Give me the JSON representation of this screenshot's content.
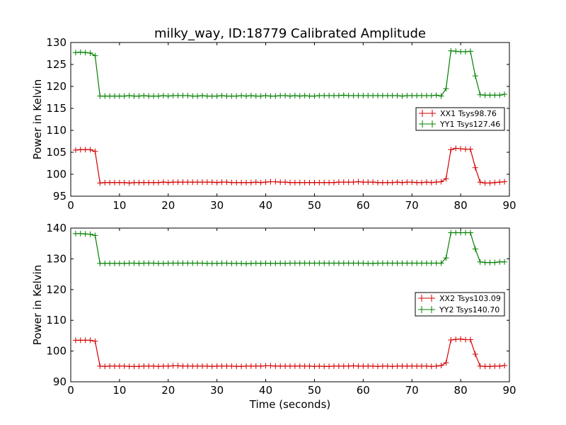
{
  "chart_data": [
    {
      "type": "line",
      "title": "milky_way, ID:18779 Calibrated Amplitude",
      "xlabel": "",
      "ylabel": "Power in Kelvin",
      "xlim": [
        0,
        90
      ],
      "ylim": [
        95,
        130
      ],
      "xticks": [
        "0",
        "10",
        "20",
        "30",
        "40",
        "50",
        "60",
        "70",
        "80",
        "90"
      ],
      "yticks": [
        "95",
        "100",
        "105",
        "110",
        "115",
        "120",
        "125",
        "130"
      ],
      "grid": false,
      "legend": "right",
      "x": [
        1,
        2,
        3,
        4,
        5,
        6,
        7,
        8,
        9,
        10,
        11,
        12,
        13,
        14,
        15,
        16,
        17,
        18,
        19,
        20,
        21,
        22,
        23,
        24,
        25,
        26,
        27,
        28,
        29,
        30,
        31,
        32,
        33,
        34,
        35,
        36,
        37,
        38,
        39,
        40,
        41,
        42,
        43,
        44,
        45,
        46,
        47,
        48,
        49,
        50,
        51,
        52,
        53,
        54,
        55,
        56,
        57,
        58,
        59,
        60,
        61,
        62,
        63,
        64,
        65,
        66,
        67,
        68,
        69,
        70,
        71,
        72,
        73,
        74,
        75,
        76,
        77,
        78,
        79,
        80,
        81,
        82,
        83,
        84,
        85,
        86,
        87,
        88,
        89
      ],
      "series": [
        {
          "name": "XX1 Tsys98.76",
          "color": "#d40000",
          "values": [
            105.5,
            105.6,
            105.6,
            105.6,
            105.2,
            98.0,
            98.1,
            98.1,
            98.1,
            98.1,
            98.1,
            98.0,
            98.1,
            98.1,
            98.1,
            98.1,
            98.1,
            98.1,
            98.2,
            98.1,
            98.2,
            98.2,
            98.2,
            98.2,
            98.2,
            98.2,
            98.2,
            98.2,
            98.2,
            98.1,
            98.2,
            98.2,
            98.1,
            98.1,
            98.1,
            98.1,
            98.1,
            98.2,
            98.1,
            98.2,
            98.3,
            98.3,
            98.2,
            98.2,
            98.1,
            98.1,
            98.1,
            98.1,
            98.1,
            98.1,
            98.1,
            98.1,
            98.1,
            98.1,
            98.2,
            98.2,
            98.2,
            98.2,
            98.3,
            98.2,
            98.2,
            98.2,
            98.1,
            98.1,
            98.1,
            98.1,
            98.2,
            98.1,
            98.2,
            98.2,
            98.1,
            98.1,
            98.2,
            98.1,
            98.2,
            98.3,
            99.0,
            105.6,
            105.9,
            105.8,
            105.7,
            105.7,
            101.5,
            98.2,
            98.0,
            98.0,
            98.1,
            98.2,
            98.3
          ]
        },
        {
          "name": "YY1 Tsys127.46",
          "color": "#008000",
          "values": [
            127.7,
            127.8,
            127.7,
            127.6,
            127.0,
            117.8,
            117.8,
            117.8,
            117.8,
            117.8,
            117.8,
            117.9,
            117.8,
            117.8,
            117.9,
            117.8,
            117.8,
            117.8,
            117.9,
            117.8,
            117.9,
            117.9,
            117.9,
            117.9,
            117.8,
            117.8,
            117.9,
            117.8,
            117.8,
            117.8,
            117.9,
            117.8,
            117.8,
            117.8,
            117.9,
            117.8,
            117.9,
            117.8,
            117.8,
            117.9,
            117.8,
            117.8,
            117.9,
            117.9,
            117.8,
            117.9,
            117.8,
            117.9,
            117.8,
            117.8,
            117.9,
            117.9,
            117.9,
            117.9,
            117.9,
            118.0,
            117.9,
            117.9,
            117.9,
            117.9,
            117.9,
            117.9,
            117.9,
            117.9,
            117.9,
            117.9,
            117.9,
            117.8,
            117.9,
            117.9,
            117.9,
            117.9,
            117.9,
            117.9,
            118.0,
            117.8,
            119.5,
            128.1,
            128.0,
            127.9,
            127.9,
            128.0,
            122.4,
            118.1,
            118.0,
            118.0,
            118.0,
            118.0,
            118.2
          ]
        }
      ]
    },
    {
      "type": "line",
      "title": "",
      "xlabel": "Time (seconds)",
      "ylabel": "Power in Kelvin",
      "xlim": [
        0,
        90
      ],
      "ylim": [
        90,
        140
      ],
      "xticks": [
        "0",
        "10",
        "20",
        "30",
        "40",
        "50",
        "60",
        "70",
        "80",
        "90"
      ],
      "yticks": [
        "90",
        "100",
        "110",
        "120",
        "130",
        "140"
      ],
      "grid": false,
      "legend": "right",
      "x": [
        1,
        2,
        3,
        4,
        5,
        6,
        7,
        8,
        9,
        10,
        11,
        12,
        13,
        14,
        15,
        16,
        17,
        18,
        19,
        20,
        21,
        22,
        23,
        24,
        25,
        26,
        27,
        28,
        29,
        30,
        31,
        32,
        33,
        34,
        35,
        36,
        37,
        38,
        39,
        40,
        41,
        42,
        43,
        44,
        45,
        46,
        47,
        48,
        49,
        50,
        51,
        52,
        53,
        54,
        55,
        56,
        57,
        58,
        59,
        60,
        61,
        62,
        63,
        64,
        65,
        66,
        67,
        68,
        69,
        70,
        71,
        72,
        73,
        74,
        75,
        76,
        77,
        78,
        79,
        80,
        81,
        82,
        83,
        84,
        85,
        86,
        87,
        88,
        89
      ],
      "series": [
        {
          "name": "XX2 Tsys103.09",
          "color": "#d40000",
          "values": [
            103.5,
            103.5,
            103.5,
            103.5,
            103.2,
            95.1,
            95.0,
            95.1,
            95.1,
            95.1,
            95.1,
            95.0,
            95.0,
            95.0,
            95.1,
            95.1,
            95.1,
            95.0,
            95.1,
            95.1,
            95.2,
            95.2,
            95.1,
            95.1,
            95.1,
            95.1,
            95.1,
            95.1,
            95.0,
            95.1,
            95.1,
            95.1,
            95.1,
            95.0,
            95.0,
            95.1,
            95.1,
            95.1,
            95.1,
            95.2,
            95.2,
            95.1,
            95.1,
            95.1,
            95.1,
            95.1,
            95.1,
            95.1,
            95.1,
            95.0,
            95.1,
            95.0,
            95.0,
            95.1,
            95.1,
            95.1,
            95.1,
            95.2,
            95.1,
            95.1,
            95.1,
            95.1,
            95.0,
            95.1,
            95.1,
            95.0,
            95.1,
            95.1,
            95.1,
            95.1,
            95.1,
            95.1,
            95.1,
            95.0,
            95.1,
            95.3,
            96.2,
            103.6,
            103.8,
            103.9,
            103.7,
            103.7,
            99.0,
            95.1,
            95.0,
            95.0,
            95.1,
            95.1,
            95.3
          ]
        },
        {
          "name": "YY2 Tsys140.70",
          "color": "#008000",
          "values": [
            138.2,
            138.2,
            138.1,
            138.0,
            137.6,
            128.5,
            128.5,
            128.5,
            128.5,
            128.5,
            128.5,
            128.6,
            128.6,
            128.5,
            128.6,
            128.6,
            128.6,
            128.5,
            128.5,
            128.6,
            128.6,
            128.6,
            128.6,
            128.6,
            128.6,
            128.6,
            128.6,
            128.5,
            128.5,
            128.5,
            128.6,
            128.6,
            128.5,
            128.5,
            128.5,
            128.4,
            128.5,
            128.6,
            128.5,
            128.6,
            128.5,
            128.5,
            128.6,
            128.5,
            128.6,
            128.6,
            128.6,
            128.6,
            128.6,
            128.6,
            128.6,
            128.6,
            128.6,
            128.6,
            128.6,
            128.6,
            128.6,
            128.6,
            128.6,
            128.6,
            128.5,
            128.5,
            128.6,
            128.6,
            128.6,
            128.6,
            128.6,
            128.6,
            128.6,
            128.6,
            128.6,
            128.6,
            128.6,
            128.6,
            128.6,
            128.6,
            130.3,
            138.5,
            138.5,
            138.5,
            138.5,
            138.5,
            133.2,
            129.0,
            128.8,
            128.8,
            128.8,
            129.0,
            129.0
          ]
        }
      ]
    }
  ]
}
